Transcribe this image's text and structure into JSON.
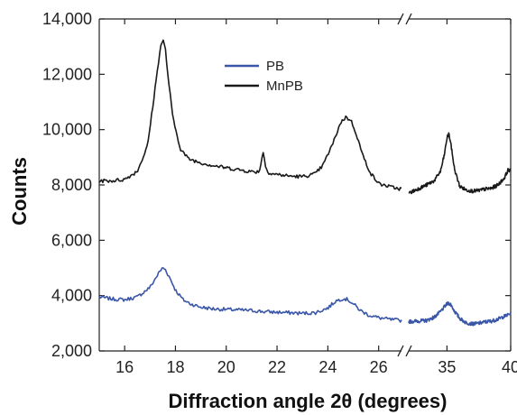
{
  "chart_data": {
    "type": "line",
    "title": "",
    "xlabel": "Diffraction angle 2θ (degrees)",
    "ylabel": "Counts",
    "ylim": [
      2000,
      14000
    ],
    "grid": false,
    "legend_placement": "top-center",
    "x_axis_broken": true,
    "x_segments": [
      {
        "xlim": [
          15,
          26.9
        ],
        "ticks": [
          16,
          18,
          20,
          22,
          24,
          26
        ]
      },
      {
        "xlim": [
          32,
          40
        ],
        "ticks": [
          35,
          40
        ]
      }
    ],
    "y_ticks": [
      2000,
      4000,
      6000,
      8000,
      10000,
      12000,
      14000
    ],
    "y_tick_labels": [
      "2,000",
      "4,000",
      "6,000",
      "8,000",
      "10,000",
      "12,000",
      "14,000"
    ],
    "series": [
      {
        "name": "PB",
        "color": "#3a56a8",
        "segments": [
          {
            "x": [
              15.0,
              15.5,
              16.0,
              16.5,
              17.0,
              17.2,
              17.4,
              17.5,
              17.6,
              17.8,
              18.0,
              18.3,
              18.6,
              19.0,
              19.5,
              20.0,
              20.5,
              21.0,
              21.5,
              22.0,
              22.5,
              23.0,
              23.5,
              24.0,
              24.3,
              24.6,
              24.8,
              25.0,
              25.3,
              25.6,
              26.0,
              26.5,
              26.9
            ],
            "y": [
              3950,
              3880,
              3850,
              3950,
              4300,
              4600,
              4900,
              5000,
              4950,
              4600,
              4200,
              3850,
              3700,
              3580,
              3520,
              3500,
              3480,
              3460,
              3420,
              3400,
              3380,
              3360,
              3380,
              3550,
              3800,
              3900,
              3850,
              3700,
              3450,
              3300,
              3200,
              3130,
              3100
            ]
          },
          {
            "x": [
              32.0,
              32.7,
              33.4,
              34.0,
              34.5,
              34.9,
              35.1,
              35.3,
              35.6,
              36.0,
              36.5,
              37.0,
              37.5,
              38.0,
              38.5,
              39.0,
              39.5,
              40.0
            ],
            "y": [
              3060,
              3080,
              3100,
              3220,
              3420,
              3650,
              3730,
              3680,
              3430,
              3180,
              3020,
              2980,
              3000,
              3050,
              3080,
              3150,
              3250,
              3350
            ]
          }
        ]
      },
      {
        "name": "MnPB",
        "color": "#1a1a1a",
        "segments": [
          {
            "x": [
              15.0,
              15.5,
              16.0,
              16.5,
              16.9,
              17.1,
              17.3,
              17.4,
              17.5,
              17.6,
              17.7,
              17.9,
              18.2,
              18.5,
              19.0,
              19.5,
              20.0,
              20.5,
              21.0,
              21.3,
              21.45,
              21.55,
              21.7,
              22.0,
              22.5,
              23.0,
              23.5,
              23.8,
              24.2,
              24.5,
              24.7,
              24.9,
              25.1,
              25.4,
              25.7,
              26.0,
              26.5,
              26.9
            ],
            "y": [
              8150,
              8150,
              8200,
              8500,
              9400,
              10800,
              12200,
              12950,
              13250,
              12950,
              12000,
              10400,
              9300,
              8950,
              8800,
              8700,
              8620,
              8550,
              8480,
              8480,
              9200,
              8650,
              8420,
              8380,
              8320,
              8300,
              8400,
              8700,
              9500,
              10250,
              10450,
              10350,
              9900,
              9000,
              8400,
              8050,
              7920,
              7850
            ]
          },
          {
            "x": [
              32.0,
              32.7,
              33.4,
              34.0,
              34.5,
              34.8,
              35.0,
              35.15,
              35.3,
              35.6,
              36.0,
              36.5,
              37.0,
              37.5,
              38.0,
              38.5,
              39.0,
              39.5,
              39.8,
              40.0
            ],
            "y": [
              7700,
              7850,
              8000,
              8150,
              8500,
              9100,
              9700,
              9850,
              9500,
              8550,
              7950,
              7820,
              7780,
              7800,
              7850,
              7880,
              8000,
              8250,
              8550,
              8500
            ]
          }
        ]
      }
    ]
  }
}
